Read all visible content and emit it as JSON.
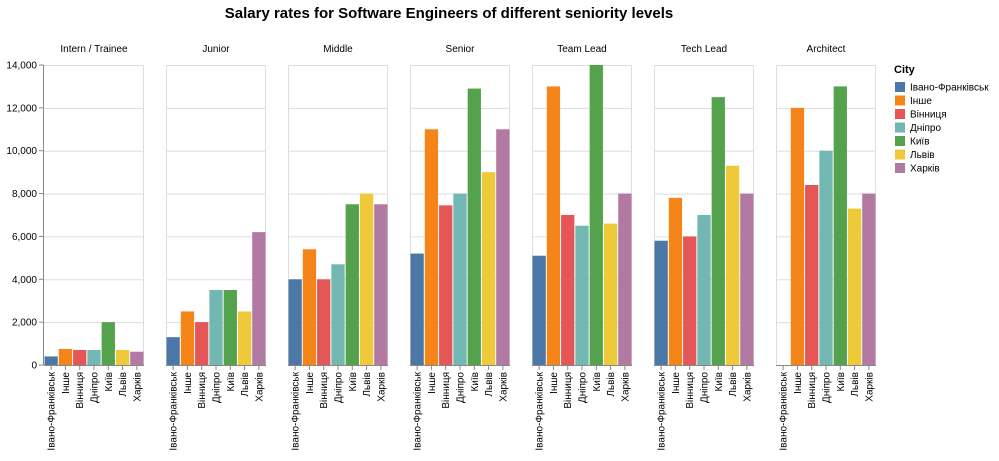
{
  "chart_data": {
    "type": "bar",
    "title": "Salary rates for Software Engineers of different seniority levels",
    "ylim": [
      0,
      14000
    ],
    "y_ticks": [
      0,
      2000,
      4000,
      6000,
      8000,
      10000,
      12000,
      14000
    ],
    "y_tick_labels": [
      "0",
      "2,000",
      "4,000",
      "6,000",
      "8,000",
      "10,000",
      "12,000",
      "14,000"
    ],
    "grid": true,
    "legend": {
      "title": "City",
      "placement": "right",
      "entries": [
        "Івано-Франківськ",
        "Інше",
        "Вінниця",
        "Дніпро",
        "Київ",
        "Львів",
        "Харків"
      ]
    },
    "categories": [
      "Івано-Франківськ",
      "Інше",
      "Вінниця",
      "Дніпро",
      "Київ",
      "Львів",
      "Харків"
    ],
    "colors": [
      "#4c78a8",
      "#f58518",
      "#e45756",
      "#72b7b2",
      "#54a24b",
      "#eeca3b",
      "#b279a2"
    ],
    "facets": [
      {
        "name": "Intern / Trainee",
        "values": [
          400,
          750,
          700,
          700,
          2000,
          700,
          620
        ]
      },
      {
        "name": "Junior",
        "values": [
          1300,
          2500,
          2000,
          3500,
          3500,
          2500,
          6200
        ]
      },
      {
        "name": "Middle",
        "values": [
          4000,
          5400,
          4000,
          4700,
          7500,
          8000,
          7500
        ]
      },
      {
        "name": "Senior",
        "values": [
          5200,
          11000,
          7450,
          8000,
          12900,
          9000,
          11000
        ]
      },
      {
        "name": "Team Lead",
        "values": [
          5100,
          13000,
          7000,
          6500,
          14000,
          6600,
          8000
        ]
      },
      {
        "name": "Tech Lead",
        "values": [
          5800,
          7800,
          6000,
          7000,
          12500,
          9300,
          8000
        ]
      },
      {
        "name": "Architect",
        "values": [
          0,
          12000,
          8400,
          10000,
          13000,
          7300,
          8000
        ]
      }
    ]
  }
}
